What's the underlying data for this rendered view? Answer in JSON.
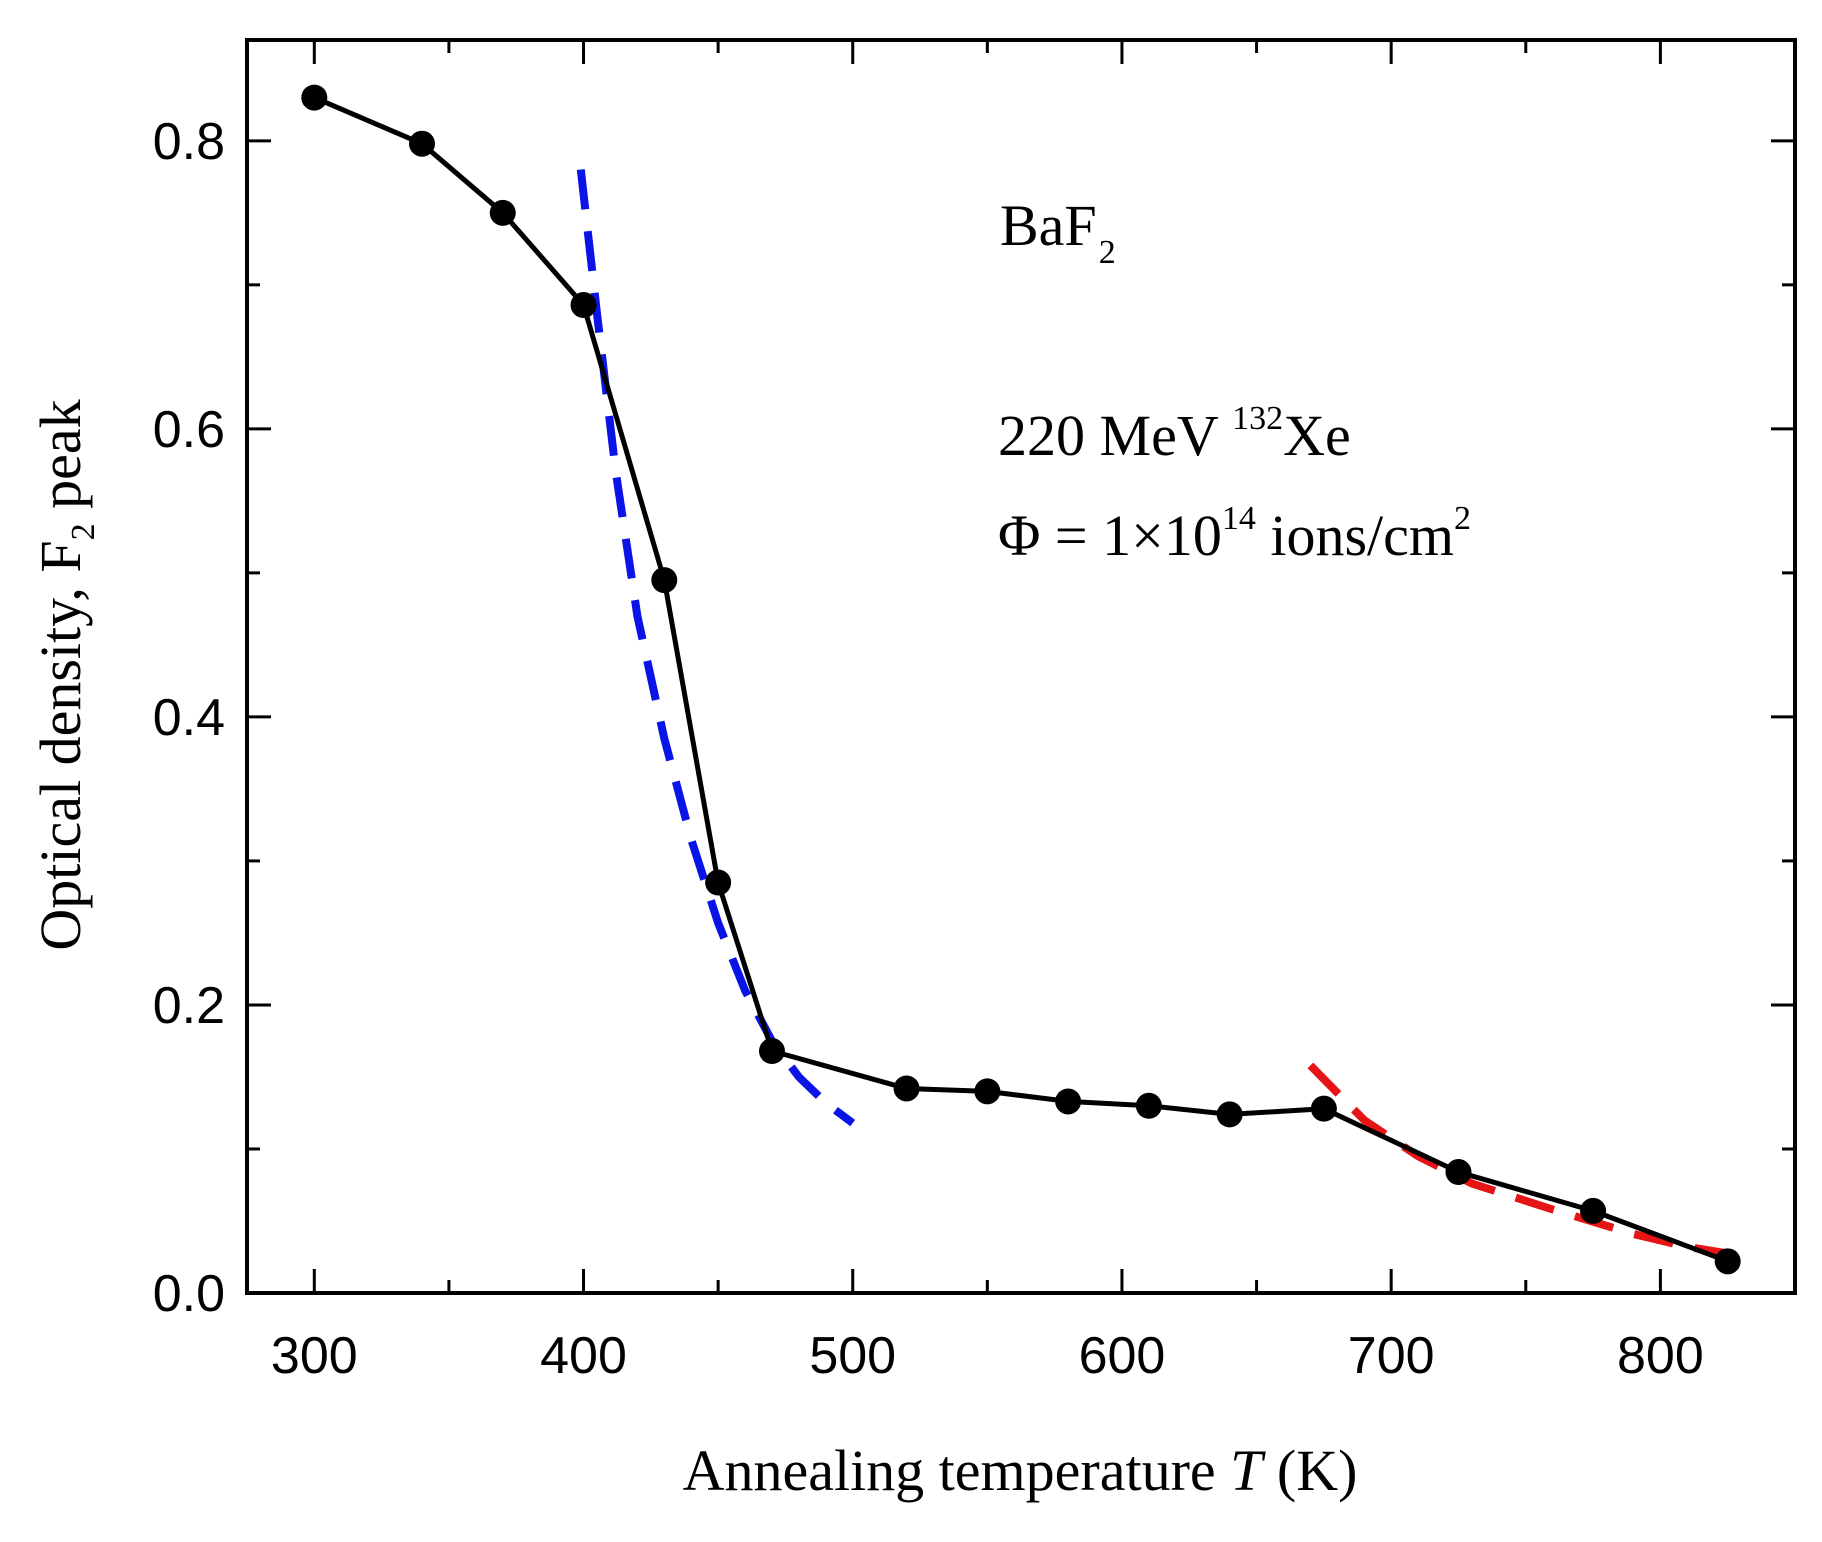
{
  "chart_data": {
    "type": "line",
    "title": "",
    "xlabel": {
      "text": "Annealing temperature ",
      "var": "T",
      "unit": " (K)"
    },
    "ylabel": {
      "pre": "Optical density, F",
      "sub": "2",
      "post": " peak"
    },
    "xlim": [
      275,
      850
    ],
    "ylim": [
      0.0,
      0.87
    ],
    "x_ticks": [
      300,
      400,
      500,
      600,
      700,
      800
    ],
    "x_tick_labels": [
      "300",
      "400",
      "500",
      "600",
      "700",
      "800"
    ],
    "y_ticks": [
      0.0,
      0.2,
      0.4,
      0.6,
      0.8
    ],
    "y_tick_labels": [
      "0.0",
      "0.2",
      "0.4",
      "0.6",
      "0.8"
    ],
    "x_minor_ticks": [
      350,
      450,
      550,
      650,
      750
    ],
    "y_minor_ticks": [
      0.1,
      0.3,
      0.5,
      0.7
    ],
    "series": [
      {
        "name": "BaF2 F2 peak",
        "color": "#000000",
        "marker": "circle",
        "x": [
          300,
          340,
          370,
          400,
          430,
          450,
          470,
          520,
          550,
          580,
          610,
          640,
          675,
          725,
          775,
          825
        ],
        "y": [
          0.83,
          0.798,
          0.75,
          0.686,
          0.495,
          0.285,
          0.168,
          0.142,
          0.14,
          0.133,
          0.13,
          0.124,
          0.128,
          0.084,
          0.057,
          0.022
        ]
      },
      {
        "name": "fit 1",
        "color": "#0a14e6",
        "style": "dashed",
        "x": [
          399,
          405,
          412,
          420,
          430,
          440,
          450,
          460,
          470,
          480,
          490,
          500
        ],
        "y": [
          0.78,
          0.68,
          0.57,
          0.47,
          0.385,
          0.315,
          0.257,
          0.21,
          0.175,
          0.15,
          0.132,
          0.118
        ]
      },
      {
        "name": "fit 2",
        "color": "#e61414",
        "style": "dashed",
        "x": [
          670,
          690,
          710,
          730,
          760,
          790,
          810,
          830
        ],
        "y": [
          0.158,
          0.12,
          0.095,
          0.076,
          0.058,
          0.041,
          0.032,
          0.026
        ]
      }
    ],
    "annotations": {
      "material": {
        "base": "BaF",
        "sub": "2"
      },
      "ion": {
        "pre": "220 MeV ",
        "sup": "132",
        "post": "Xe"
      },
      "fluence": {
        "pre": "Φ = 1×10",
        "sup": "14",
        "post": " ions/cm",
        "sup2": "2"
      }
    },
    "legend": "none",
    "grid": false
  }
}
